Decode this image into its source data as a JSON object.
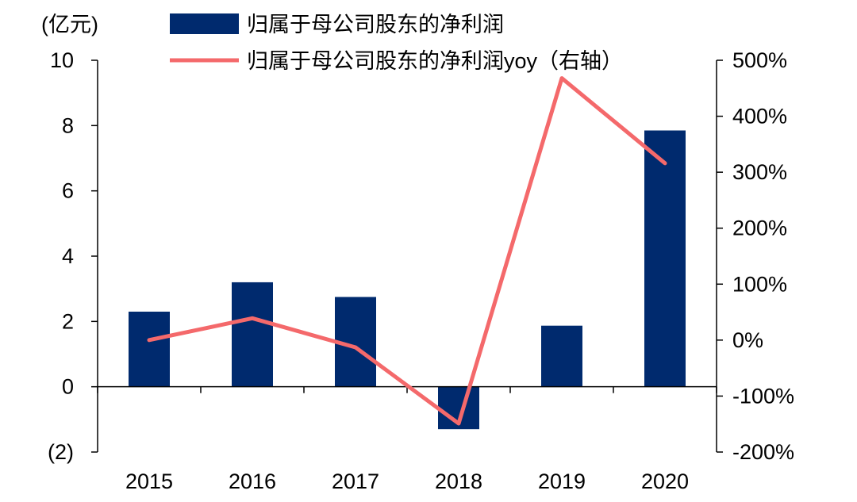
{
  "chart_data": {
    "type": "bar+line",
    "unit_label": "(亿元)",
    "categories": [
      "2015",
      "2016",
      "2017",
      "2018",
      "2019",
      "2020"
    ],
    "series": [
      {
        "name": "归属于母公司股东的净利润",
        "type": "bar",
        "axis": "left",
        "color": "#002a6e",
        "values": [
          2.3,
          3.2,
          2.75,
          -1.3,
          1.87,
          7.85
        ]
      },
      {
        "name": "归属于母公司股东的净利润yoy（右轴）",
        "type": "line",
        "axis": "right",
        "color": "#f4696b",
        "values": [
          0,
          39,
          -13,
          -149,
          468,
          316
        ]
      }
    ],
    "y_left": {
      "range": [
        -2,
        10
      ],
      "ticks": [
        -2,
        0,
        2,
        4,
        6,
        8,
        10
      ],
      "tick_labels": [
        "(2)",
        "0",
        "2",
        "4",
        "6",
        "8",
        "10"
      ]
    },
    "y_right": {
      "range": [
        -200,
        500
      ],
      "ticks": [
        -200,
        -100,
        0,
        100,
        200,
        300,
        400,
        500
      ],
      "tick_labels": [
        "-200%",
        "-100%",
        "0%",
        "100%",
        "200%",
        "300%",
        "400%",
        "500%"
      ]
    },
    "legend_position": "top",
    "grid": false
  }
}
